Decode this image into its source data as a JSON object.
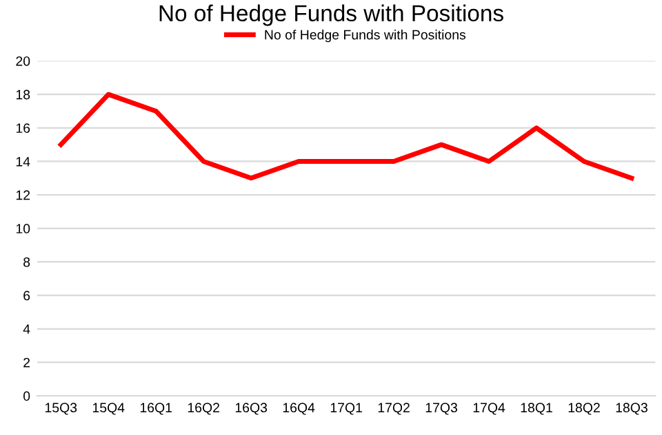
{
  "chart_data": {
    "type": "line",
    "title": "No of Hedge Funds with Positions",
    "categories": [
      "15Q3",
      "15Q4",
      "16Q1",
      "16Q2",
      "16Q3",
      "16Q4",
      "17Q1",
      "17Q2",
      "17Q3",
      "17Q4",
      "18Q1",
      "18Q2",
      "18Q3"
    ],
    "series": [
      {
        "name": "No of Hedge Funds with Positions",
        "color": "#ff0000",
        "values": [
          15,
          18,
          17,
          14,
          13,
          14,
          14,
          14,
          15,
          14,
          16,
          14,
          13
        ]
      }
    ],
    "ylim": [
      0,
      20
    ],
    "yticks": [
      0,
      2,
      4,
      6,
      8,
      10,
      12,
      14,
      16,
      18,
      20
    ],
    "grid": "y",
    "legend": "top",
    "marker": "none",
    "line_style": "solid"
  }
}
